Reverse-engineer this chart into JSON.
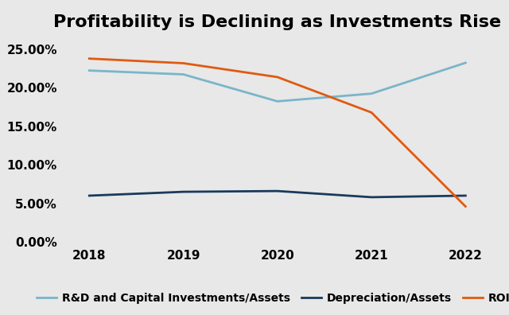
{
  "title": "Profitability is Declining as Investments Rise",
  "years": [
    2018,
    2019,
    2020,
    2021,
    2022
  ],
  "rd_capex_assets": [
    0.2225,
    0.2175,
    0.1825,
    0.1925,
    0.2325
  ],
  "depreciation_assets": [
    0.06,
    0.065,
    0.066,
    0.058,
    0.06
  ],
  "roic": [
    0.238,
    0.232,
    0.214,
    0.168,
    0.046
  ],
  "color_rd": "#7ab5c9",
  "color_dep": "#1a3a5c",
  "color_roic": "#e05a10",
  "background_color": "#e8e8e8",
  "linewidth": 2.0,
  "ylim": [
    -0.005,
    0.265
  ],
  "yticks": [
    0.0,
    0.05,
    0.1,
    0.15,
    0.2,
    0.25
  ],
  "legend_labels": [
    "R&D and Capital Investments/Assets",
    "Depreciation/Assets",
    "ROIC"
  ],
  "title_fontsize": 16,
  "tick_fontsize": 11,
  "legend_fontsize": 10
}
